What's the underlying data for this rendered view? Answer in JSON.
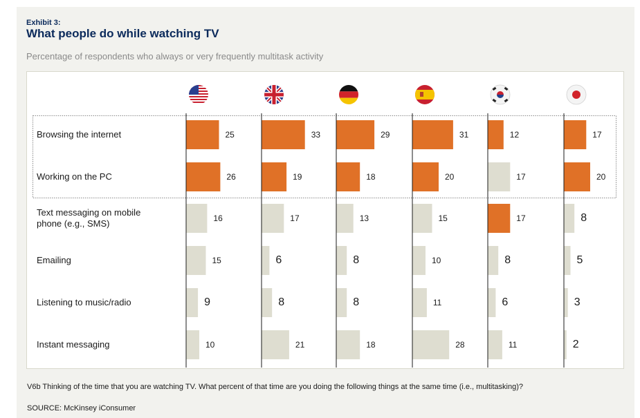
{
  "header": {
    "exhibit": "Exhibit 3:",
    "title": "What people do while watching TV",
    "subtitle": "Percentage of respondents who always or very frequently multitask activity"
  },
  "footer": {
    "question": "V6b Thinking of the time that you are watching TV. What percent of that time are you doing the following things at the same time (i.e., multitasking)?",
    "source": "SOURCE: McKinsey iConsumer"
  },
  "colors": {
    "highlight": "#e07127",
    "muted": "#deddd0",
    "axis": "#1a1a1a",
    "dotted_box": "#8a8a8a"
  },
  "chart_data": {
    "type": "bar",
    "countries": [
      {
        "flag": "us-flag-icon"
      },
      {
        "flag": "uk-flag-icon"
      },
      {
        "flag": "germany-flag-icon"
      },
      {
        "flag": "spain-flag-icon"
      },
      {
        "flag": "south-korea-flag-icon"
      },
      {
        "flag": "japan-flag-icon"
      }
    ],
    "categories": [
      [
        "Browsing the internet"
      ],
      [
        "Working on the PC"
      ],
      [
        "Text messaging on mobile",
        "phone (e.g., SMS)"
      ],
      [
        "Emailing"
      ],
      [
        "Listening to music/radio"
      ],
      [
        "Instant messaging"
      ]
    ],
    "values": [
      [
        25,
        33,
        29,
        31,
        12,
        17
      ],
      [
        26,
        19,
        18,
        20,
        17,
        20
      ],
      [
        16,
        17,
        13,
        15,
        17,
        8
      ],
      [
        15,
        6,
        8,
        10,
        8,
        5
      ],
      [
        9,
        8,
        8,
        11,
        6,
        3
      ],
      [
        10,
        21,
        18,
        28,
        11,
        2
      ]
    ],
    "highlight": [
      [
        true,
        true,
        true,
        true,
        true,
        true
      ],
      [
        true,
        true,
        true,
        true,
        false,
        true
      ],
      [
        false,
        false,
        false,
        false,
        true,
        false
      ],
      [
        false,
        false,
        false,
        false,
        false,
        false
      ],
      [
        false,
        false,
        false,
        false,
        false,
        false
      ],
      [
        false,
        false,
        false,
        false,
        false,
        false
      ]
    ],
    "highlighted_rows": [
      0,
      1
    ]
  }
}
